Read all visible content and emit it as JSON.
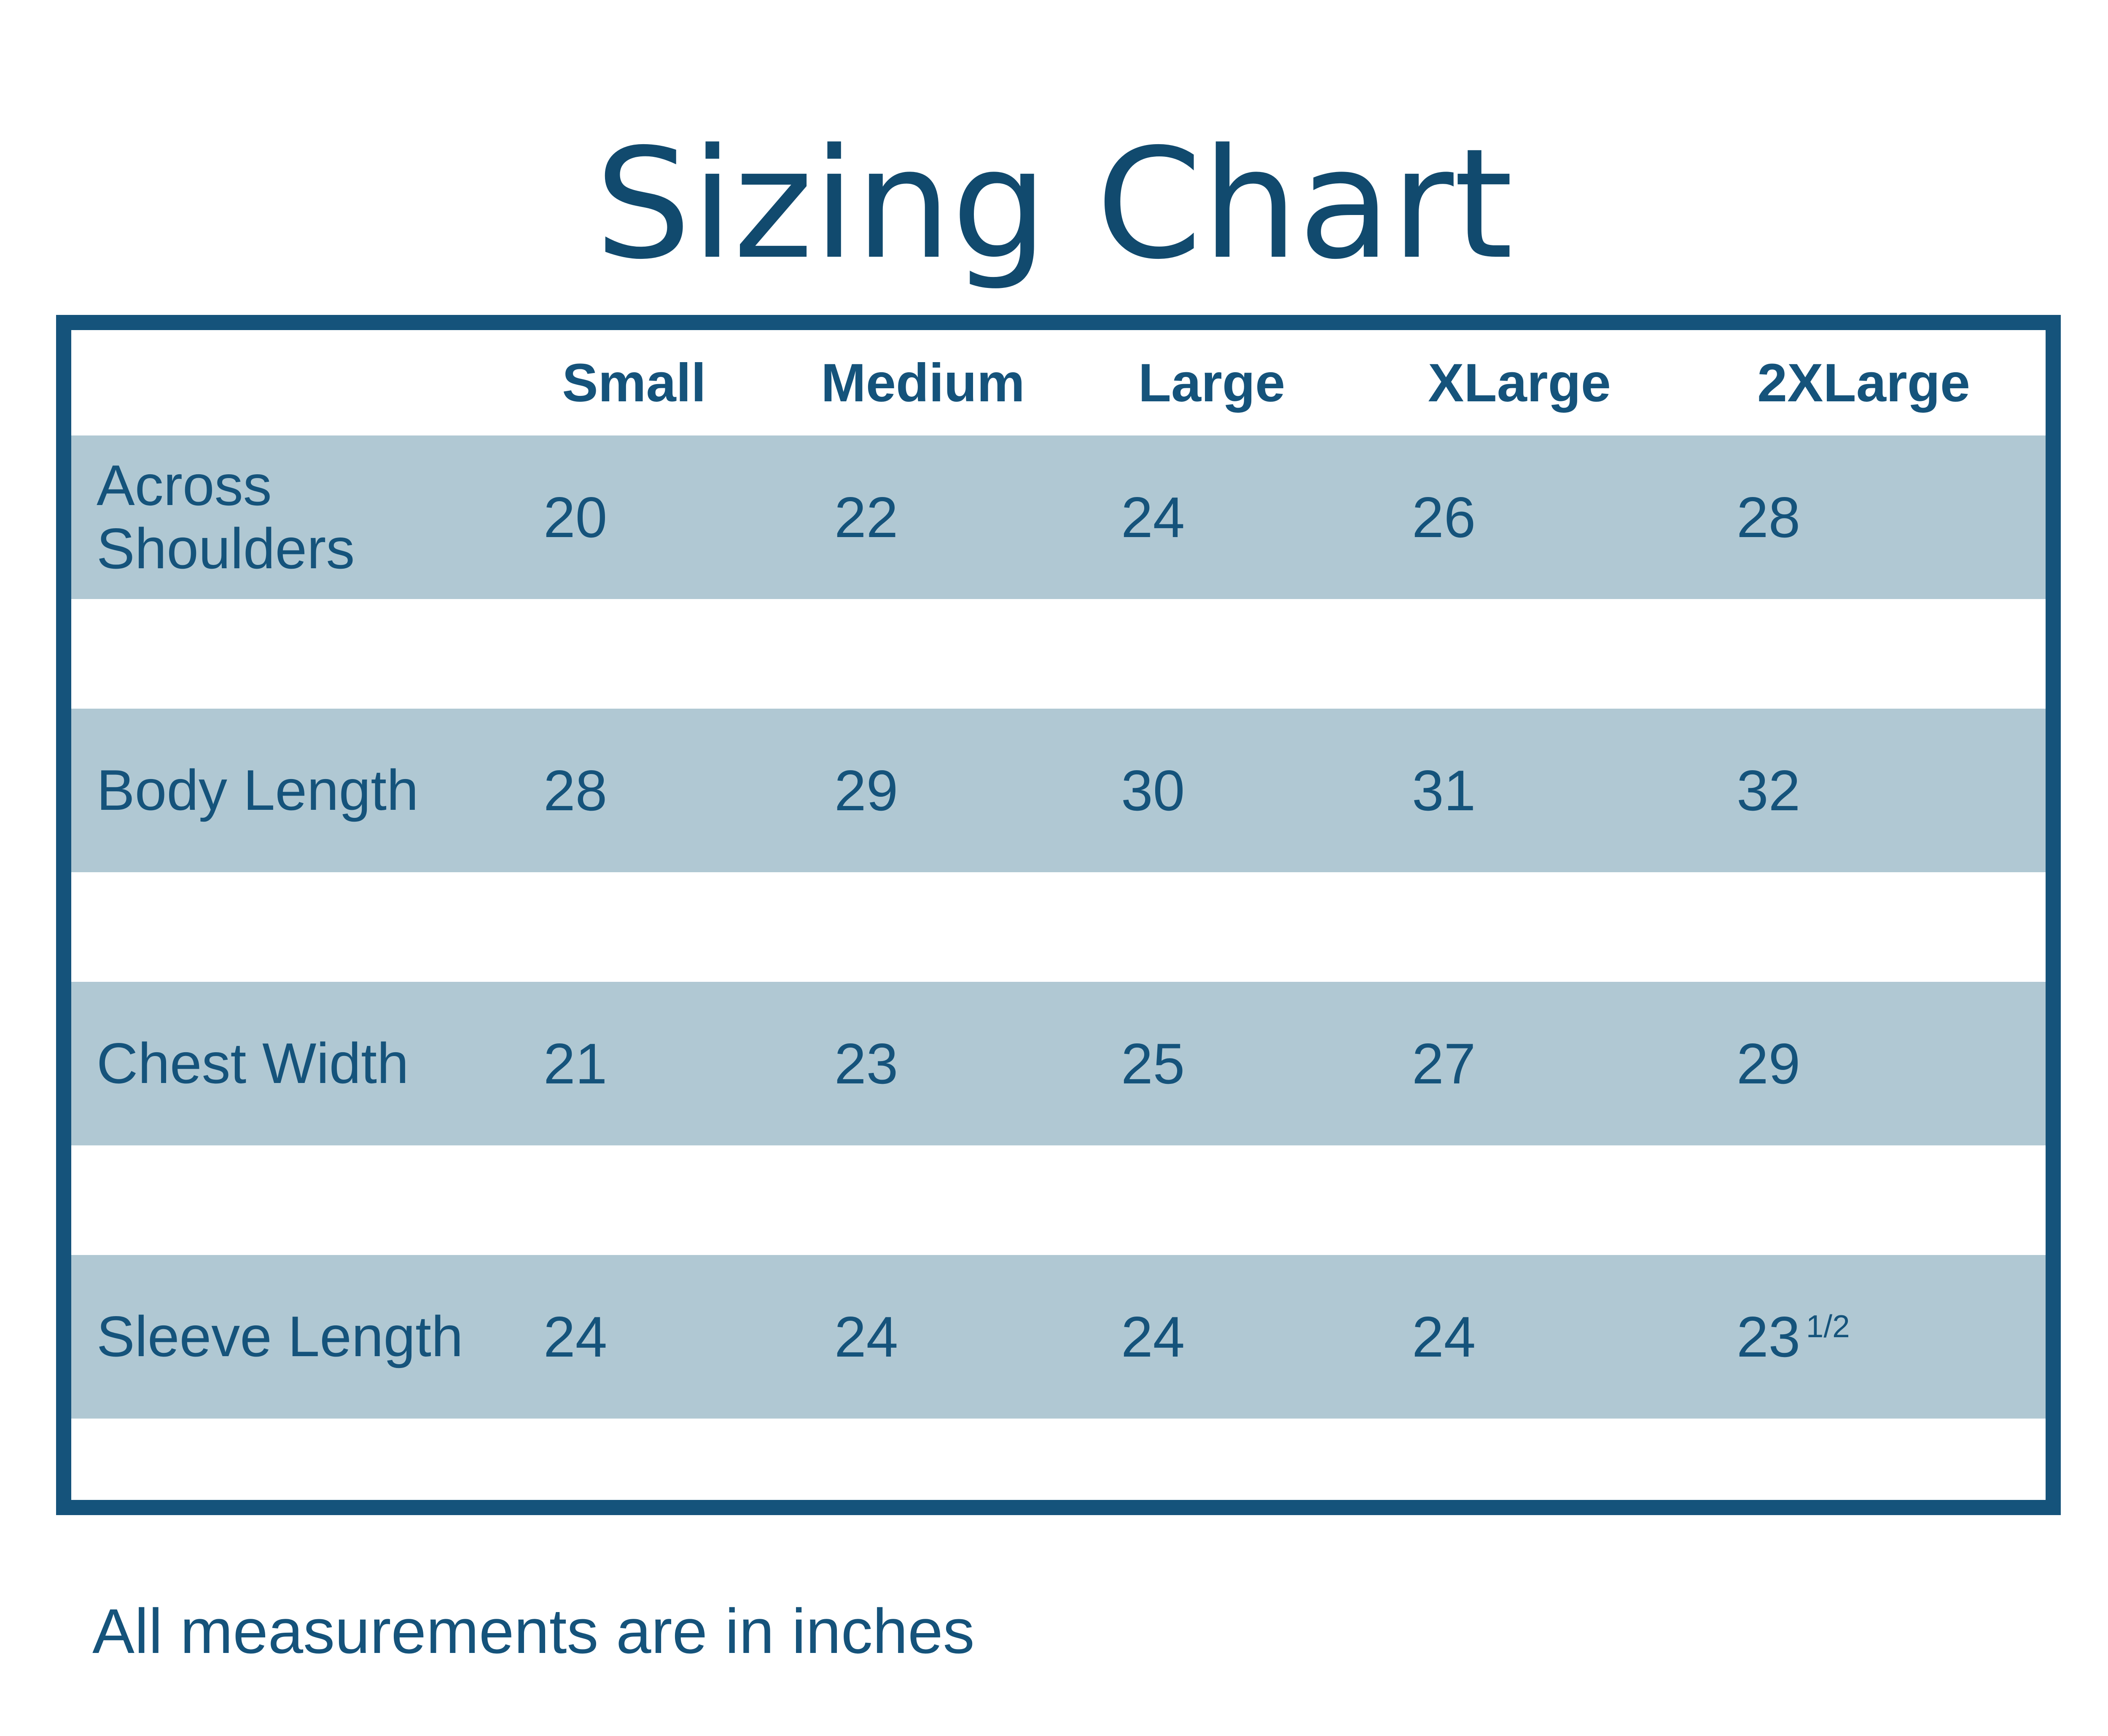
{
  "title": "Sizing Chart",
  "table": {
    "columns": [
      "Small",
      "Medium",
      "Large",
      "XLarge",
      "2XLarge"
    ],
    "rows": [
      {
        "label": "Across Shoulders",
        "values": [
          "20",
          "22",
          "24",
          "26",
          "28"
        ]
      },
      {
        "label": "Body Length",
        "values": [
          "28",
          "29",
          "30",
          "31",
          "32"
        ]
      },
      {
        "label": "Chest Width",
        "values": [
          "21",
          "23",
          "25",
          "27",
          "29"
        ]
      },
      {
        "label": "Sleeve Length",
        "values": [
          "24",
          "24",
          "24",
          "24",
          "23"
        ],
        "values_sup": "1/2"
      }
    ]
  },
  "footer": "All measurements are in inches",
  "colors": {
    "accent": "#15537B",
    "title": "#114A6E",
    "band": "#B0C8D3"
  },
  "chart_data": {
    "type": "table",
    "title": "Sizing Chart",
    "categories": [
      "Small",
      "Medium",
      "Large",
      "XLarge",
      "2XLarge"
    ],
    "series": [
      {
        "name": "Across Shoulders",
        "values": [
          20,
          22,
          24,
          26,
          28
        ]
      },
      {
        "name": "Body Length",
        "values": [
          28,
          29,
          30,
          31,
          32
        ]
      },
      {
        "name": "Chest Width",
        "values": [
          21,
          23,
          25,
          27,
          29
        ]
      },
      {
        "name": "Sleeve Length",
        "values": [
          24,
          24,
          24,
          24,
          23.5
        ]
      }
    ],
    "note": "All measurements are in inches"
  }
}
